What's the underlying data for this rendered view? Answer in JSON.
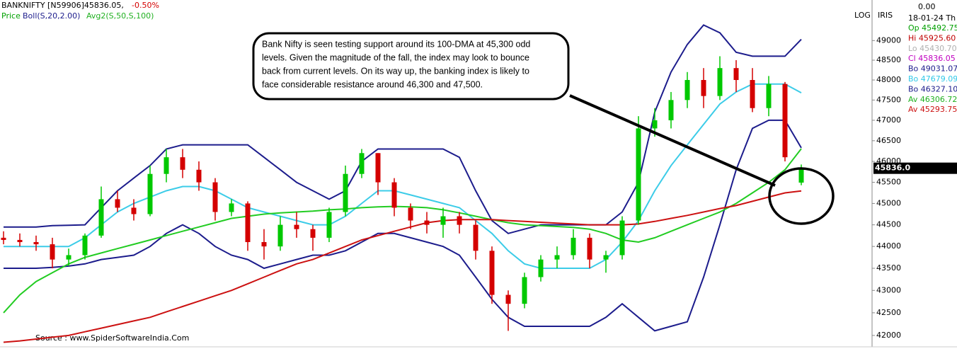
{
  "chart_data": {
    "type": "candlestick",
    "title": "BANKNIFTY [N59906]45836.05,",
    "change": "-0.50%",
    "indicator_labels": [
      "Price",
      "Boll(S,20,2.00)",
      "Avg2(S,50,S,100)"
    ],
    "scale_labels": [
      "LOG",
      "IRIS"
    ],
    "log_scale": true,
    "ylim": [
      41750,
      50050
    ],
    "yticks": [
      42000,
      42500,
      43000,
      43500,
      44000,
      44500,
      45000,
      45500,
      46000,
      46500,
      47000,
      47500,
      48000,
      48500,
      49000
    ],
    "up_color": "#00c800",
    "down_color": "#d40000",
    "ohlc": [
      [
        44200,
        44350,
        44050,
        44150
      ],
      [
        44150,
        44300,
        44000,
        44100
      ],
      [
        44100,
        44250,
        43900,
        44050
      ],
      [
        44050,
        44200,
        43500,
        43700
      ],
      [
        43700,
        43950,
        43550,
        43800
      ],
      [
        43800,
        44300,
        43700,
        44250
      ],
      [
        44250,
        45400,
        44200,
        45100
      ],
      [
        45100,
        45300,
        44800,
        44900
      ],
      [
        44900,
        45100,
        44600,
        44750
      ],
      [
        44750,
        45900,
        44700,
        45700
      ],
      [
        45700,
        46300,
        45500,
        46100
      ],
      [
        46100,
        46300,
        45600,
        45800
      ],
      [
        45800,
        46000,
        45300,
        45500
      ],
      [
        45500,
        45600,
        44600,
        44800
      ],
      [
        44800,
        45100,
        44700,
        45000
      ],
      [
        45000,
        45050,
        43900,
        44100
      ],
      [
        44100,
        44400,
        43700,
        44000
      ],
      [
        44000,
        44700,
        43900,
        44500
      ],
      [
        44500,
        44800,
        44200,
        44400
      ],
      [
        44400,
        44500,
        43900,
        44200
      ],
      [
        44200,
        44900,
        44100,
        44800
      ],
      [
        44800,
        45900,
        44700,
        45700
      ],
      [
        45700,
        46300,
        45600,
        46200
      ],
      [
        46200,
        46200,
        45200,
        45500
      ],
      [
        45500,
        45600,
        44700,
        44900
      ],
      [
        44900,
        45000,
        44400,
        44600
      ],
      [
        44600,
        44800,
        44300,
        44500
      ],
      [
        44500,
        44900,
        44200,
        44700
      ],
      [
        44700,
        44800,
        44300,
        44500
      ],
      [
        44500,
        44600,
        43700,
        43900
      ],
      [
        43900,
        44000,
        42700,
        42900
      ],
      [
        42900,
        43000,
        42100,
        42700
      ],
      [
        42700,
        43400,
        42600,
        43300
      ],
      [
        43300,
        43800,
        43200,
        43700
      ],
      [
        43700,
        44000,
        43500,
        43800
      ],
      [
        43800,
        44400,
        43700,
        44200
      ],
      [
        44200,
        44300,
        43500,
        43700
      ],
      [
        43700,
        43900,
        43400,
        43800
      ],
      [
        43800,
        44700,
        43700,
        44600
      ],
      [
        44600,
        47100,
        44500,
        46800
      ],
      [
        46800,
        47300,
        46600,
        47000
      ],
      [
        47000,
        47700,
        46800,
        47500
      ],
      [
        47500,
        48200,
        47300,
        48000
      ],
      [
        48000,
        48300,
        47300,
        47600
      ],
      [
        47600,
        48600,
        47500,
        48300
      ],
      [
        48300,
        48500,
        47700,
        48000
      ],
      [
        48000,
        48300,
        47200,
        47300
      ],
      [
        47300,
        48100,
        47100,
        47900
      ],
      [
        47900,
        47950,
        46000,
        46100
      ],
      [
        45492.75,
        45925.6,
        45430.7,
        45836.05
      ]
    ],
    "series": [
      {
        "color": "#1c1c8c",
        "values": [
          44450,
          44450,
          44450,
          44480,
          44490,
          44500,
          44900,
          45300,
          45600,
          45900,
          46300,
          46400,
          46400,
          46400,
          46400,
          46400,
          46100,
          45800,
          45500,
          45300,
          45100,
          45300,
          46000,
          46300,
          46300,
          46300,
          46300,
          46300,
          46100,
          45300,
          44600,
          44300,
          44400,
          44500,
          44500,
          44500,
          44500,
          44500,
          44800,
          45500,
          47200,
          48200,
          48900,
          49400,
          49200,
          48700,
          48600,
          48600,
          48600,
          49031.07
        ]
      },
      {
        "color": "#3ccce8",
        "values": [
          44000,
          44000,
          44000,
          44000,
          44000,
          44200,
          44500,
          44800,
          45000,
          45150,
          45300,
          45400,
          45400,
          45300,
          45100,
          44900,
          44800,
          44700,
          44600,
          44500,
          44500,
          44700,
          45000,
          45300,
          45300,
          45200,
          45100,
          45000,
          44900,
          44600,
          44300,
          43900,
          43600,
          43500,
          43500,
          43500,
          43500,
          43700,
          44100,
          44600,
          45300,
          45900,
          46400,
          46900,
          47400,
          47700,
          47900,
          47900,
          47900,
          47679.09
        ]
      },
      {
        "color": "#1c1c8c",
        "values": [
          43500,
          43500,
          43500,
          43520,
          43550,
          43600,
          43700,
          43750,
          43800,
          44000,
          44300,
          44500,
          44300,
          44000,
          43800,
          43700,
          43500,
          43600,
          43700,
          43800,
          43800,
          43900,
          44100,
          44300,
          44300,
          44200,
          44100,
          44000,
          43800,
          43300,
          42800,
          42400,
          42200,
          42200,
          42200,
          42200,
          42200,
          42400,
          42700,
          42400,
          42100,
          42200,
          42300,
          43300,
          44500,
          45800,
          46800,
          47000,
          47000,
          46327.1
        ]
      },
      {
        "color": "#22cc22",
        "values": [
          42500,
          42900,
          43200,
          43400,
          43600,
          43750,
          43850,
          43950,
          44050,
          44150,
          44250,
          44350,
          44450,
          44550,
          44650,
          44700,
          44750,
          44780,
          44800,
          44820,
          44850,
          44870,
          44900,
          44920,
          44930,
          44920,
          44900,
          44850,
          44780,
          44700,
          44620,
          44550,
          44500,
          44480,
          44460,
          44440,
          44400,
          44300,
          44150,
          44100,
          44200,
          44350,
          44500,
          44650,
          44800,
          45000,
          45250,
          45500,
          45800,
          46306.72
        ]
      },
      {
        "color": "#cc1111",
        "values": [
          41850,
          41880,
          41920,
          41960,
          42000,
          42080,
          42160,
          42240,
          42320,
          42400,
          42520,
          42640,
          42760,
          42880,
          43000,
          43150,
          43300,
          43450,
          43600,
          43700,
          43850,
          44000,
          44150,
          44250,
          44350,
          44450,
          44550,
          44600,
          44620,
          44620,
          44620,
          44600,
          44580,
          44560,
          44540,
          44520,
          44500,
          44500,
          44500,
          44520,
          44580,
          44650,
          44720,
          44800,
          44880,
          44950,
          45050,
          45150,
          45250,
          45293.75
        ]
      }
    ],
    "last_price_label": "45836.0",
    "annotation": [
      "Bank Nifty is seen testing support around its 100-DMA at 45,300 odd",
      "levels. Given the magnitude of the fall, the index may look to bounce",
      "back from current levels. On its way up, the banking index is likely to",
      "face considerable resistance around 46,300 and 47,500."
    ],
    "source": "Source : www.SpiderSoftwareIndia.Com",
    "info_panel": {
      "top": "0.00",
      "date": "18-01-24 Th",
      "items": [
        {
          "label": "Op 45492.75",
          "color": "#00a000"
        },
        {
          "label": "Hi 45925.60",
          "color": "#c00000"
        },
        {
          "label": "Lo 45430.70",
          "color": "#b0b0b0"
        },
        {
          "label": "Cl 45836.05",
          "color": "#c000c0"
        },
        {
          "label": "Bo 49031.07",
          "color": "#1c1c8c"
        },
        {
          "label": "Bo 47679.09",
          "color": "#30c8e8"
        },
        {
          "label": "Bo 46327.10",
          "color": "#1c1c8c"
        },
        {
          "label": "Av 46306.72",
          "color": "#20b020"
        },
        {
          "label": "Av 45293.75",
          "color": "#cc1111"
        }
      ]
    }
  }
}
